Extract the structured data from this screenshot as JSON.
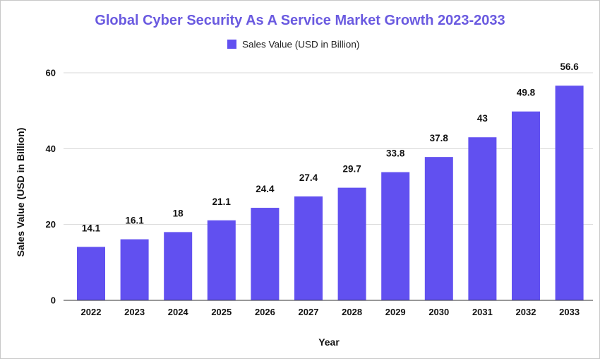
{
  "chart_data": {
    "type": "bar",
    "title": "Global Cyber Security As A Service Market Growth 2023-2033",
    "xlabel": "Year",
    "ylabel": "Sales Value (USD in Billion)",
    "legend": "Sales Value (USD in Billion)",
    "legend_position": "top-center",
    "ylim": [
      0,
      60
    ],
    "yticks": [
      0,
      20,
      40,
      60
    ],
    "grid": true,
    "categories": [
      "2022",
      "2023",
      "2024",
      "2025",
      "2026",
      "2027",
      "2028",
      "2029",
      "2030",
      "2031",
      "2032",
      "2033"
    ],
    "values": [
      14.1,
      16.1,
      18,
      21.1,
      24.4,
      27.4,
      29.7,
      33.8,
      37.8,
      43,
      49.8,
      56.6
    ],
    "data_labels": [
      "14.1",
      "16.1",
      "18",
      "21.1",
      "24.4",
      "27.4",
      "29.7",
      "33.8",
      "37.8",
      "43",
      "49.8",
      "56.6"
    ]
  },
  "colors": {
    "bar": "#6150f0",
    "title": "#6a5ae0",
    "grid": "#d8d8d8",
    "axis": "#333333"
  }
}
